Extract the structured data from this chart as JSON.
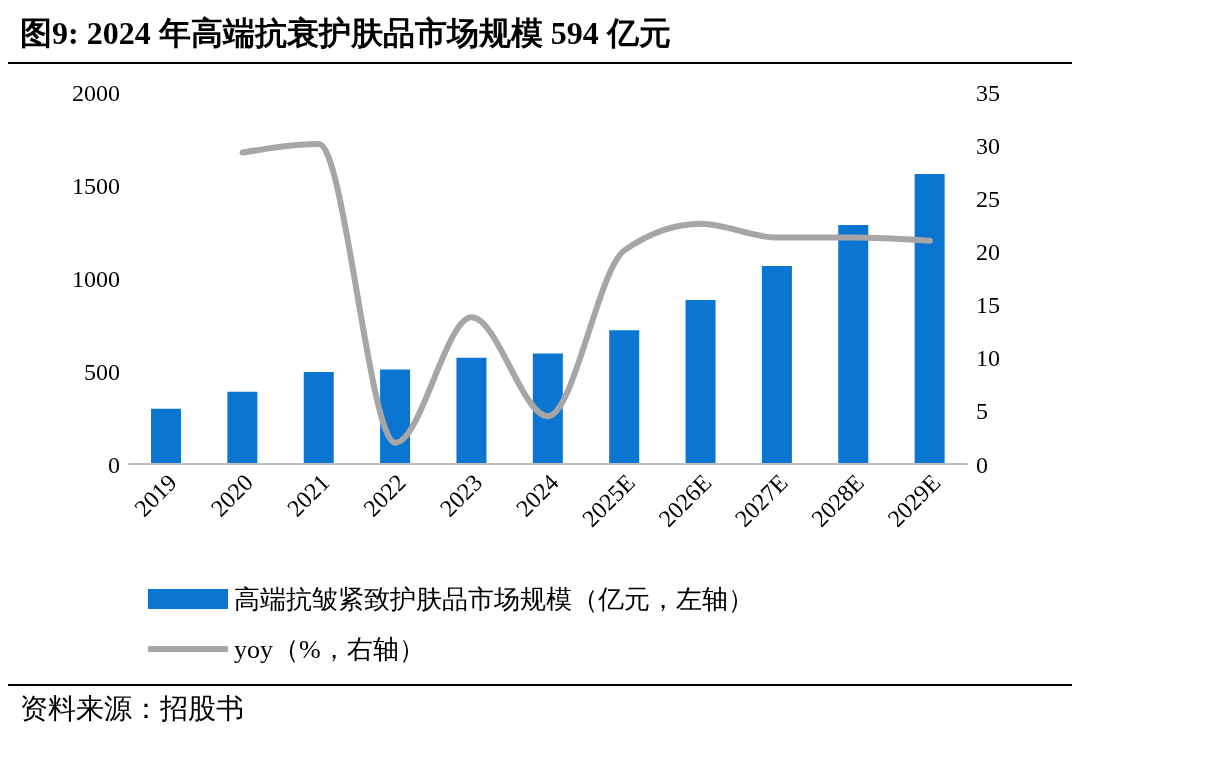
{
  "chart_data": {
    "type": "bar",
    "title": "图9:  2024 年高端抗衰护肤品市场规模 594 亿元",
    "categories": [
      "2019",
      "2020",
      "2021",
      "2022",
      "2023",
      "2024",
      "2025E",
      "2026E",
      "2027E",
      "2028E",
      "2029E"
    ],
    "series": [
      {
        "name": "高端抗皱紧致护肤品市场规模（亿元，左轴）",
        "color": "#0a76d2",
        "values": [
          297,
          388,
          494,
          508,
          571,
          594,
          719,
          882,
          1065,
          1285,
          1559
        ]
      },
      {
        "name": "yoy（%，右轴）",
        "type": "line",
        "axis": "y2",
        "color": "#a6a6a6",
        "values": [
          null,
          29.3,
          30.1,
          2.0,
          13.8,
          4.5,
          20.1,
          22.6,
          21.3,
          21.3,
          21.0
        ]
      }
    ],
    "ylim": [
      0,
      2000
    ],
    "yticks": [
      0,
      500,
      1000,
      1500,
      2000
    ],
    "y2lim": [
      0,
      35
    ],
    "y2ticks": [
      0,
      5,
      10,
      15,
      20,
      25,
      30,
      35
    ],
    "grid": false,
    "legend": "bottom",
    "marker": "none",
    "line_style": "solid",
    "annotations": [
      "资料来源：招股书"
    ]
  }
}
